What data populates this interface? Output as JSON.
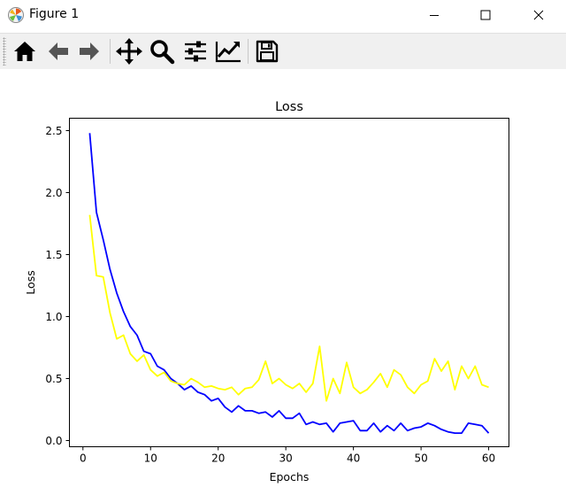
{
  "window": {
    "title": "Figure 1",
    "app_icon": "matplotlib-logo-icon",
    "controls": [
      "minimize-icon",
      "maximize-icon",
      "close-icon"
    ]
  },
  "toolbar": {
    "items": [
      {
        "name": "home-icon",
        "tooltip": "Home"
      },
      {
        "name": "back-arrow-icon",
        "tooltip": "Back"
      },
      {
        "name": "forward-arrow-icon",
        "tooltip": "Forward"
      },
      {
        "name": "pan-icon",
        "tooltip": "Pan"
      },
      {
        "name": "zoom-icon",
        "tooltip": "Zoom"
      },
      {
        "name": "configure-subplots-icon",
        "tooltip": "Subplots"
      },
      {
        "name": "edit-axis-icon",
        "tooltip": "Customize"
      },
      {
        "name": "save-icon",
        "tooltip": "Save"
      }
    ]
  },
  "chart_data": {
    "type": "line",
    "title": "Loss",
    "xlabel": "Epochs",
    "ylabel": "Loss",
    "xlim": [
      -2,
      63
    ],
    "ylim": [
      -0.05,
      2.6
    ],
    "xticks": [
      0,
      10,
      20,
      30,
      40,
      50,
      60
    ],
    "yticks": [
      0.0,
      0.5,
      1.0,
      1.5,
      2.0,
      2.5
    ],
    "ytick_labels": [
      "0.0",
      "0.5",
      "1.0",
      "1.5",
      "2.0",
      "2.5"
    ],
    "grid": false,
    "legend": "none",
    "series": [
      {
        "color": "#0000ff",
        "x": [
          1,
          2,
          3,
          4,
          5,
          6,
          7,
          8,
          9,
          10,
          11,
          12,
          13,
          14,
          15,
          16,
          17,
          18,
          19,
          20,
          21,
          22,
          23,
          24,
          25,
          26,
          27,
          28,
          29,
          30,
          31,
          32,
          33,
          34,
          35,
          36,
          37,
          38,
          39,
          40,
          41,
          42,
          43,
          44,
          45,
          46,
          47,
          48,
          49,
          50,
          51,
          52,
          53,
          54,
          55,
          56,
          57,
          58,
          59,
          60
        ],
        "values": [
          2.48,
          1.84,
          1.62,
          1.38,
          1.19,
          1.04,
          0.92,
          0.85,
          0.72,
          0.7,
          0.6,
          0.57,
          0.5,
          0.46,
          0.41,
          0.44,
          0.39,
          0.37,
          0.32,
          0.34,
          0.27,
          0.23,
          0.28,
          0.24,
          0.24,
          0.22,
          0.23,
          0.19,
          0.24,
          0.18,
          0.18,
          0.22,
          0.13,
          0.15,
          0.13,
          0.14,
          0.07,
          0.14,
          0.15,
          0.16,
          0.08,
          0.08,
          0.14,
          0.07,
          0.12,
          0.08,
          0.14,
          0.08,
          0.1,
          0.11,
          0.14,
          0.12,
          0.09,
          0.07,
          0.06,
          0.06,
          0.14,
          0.13,
          0.12,
          0.06
        ]
      },
      {
        "color": "#ffff00",
        "x": [
          1,
          2,
          3,
          4,
          5,
          6,
          7,
          8,
          9,
          10,
          11,
          12,
          13,
          14,
          15,
          16,
          17,
          18,
          19,
          20,
          21,
          22,
          23,
          24,
          25,
          26,
          27,
          28,
          29,
          30,
          31,
          32,
          33,
          34,
          35,
          36,
          37,
          38,
          39,
          40,
          41,
          42,
          43,
          44,
          45,
          46,
          47,
          48,
          49,
          50,
          51,
          52,
          53,
          54,
          55,
          56,
          57,
          58,
          59,
          60
        ],
        "values": [
          1.82,
          1.33,
          1.32,
          1.03,
          0.82,
          0.85,
          0.7,
          0.64,
          0.69,
          0.57,
          0.52,
          0.55,
          0.48,
          0.46,
          0.45,
          0.5,
          0.47,
          0.43,
          0.44,
          0.42,
          0.41,
          0.43,
          0.37,
          0.42,
          0.43,
          0.49,
          0.64,
          0.46,
          0.5,
          0.45,
          0.42,
          0.46,
          0.39,
          0.46,
          0.76,
          0.32,
          0.5,
          0.38,
          0.63,
          0.43,
          0.38,
          0.41,
          0.47,
          0.54,
          0.43,
          0.57,
          0.53,
          0.43,
          0.38,
          0.45,
          0.48,
          0.66,
          0.56,
          0.64,
          0.41,
          0.6,
          0.5,
          0.6,
          0.45,
          0.43
        ]
      }
    ]
  }
}
